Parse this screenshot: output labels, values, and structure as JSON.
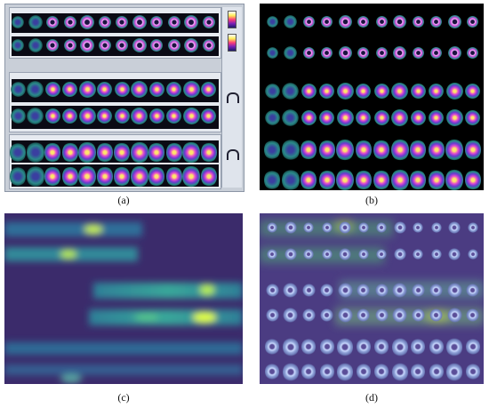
{
  "panels": [
    {
      "id": "a",
      "caption": "(a)"
    },
    {
      "id": "b",
      "caption": "(b)"
    },
    {
      "id": "c",
      "caption": "(c)"
    },
    {
      "id": "d",
      "caption": "(d)"
    }
  ],
  "colors": {
    "background": "#ffffff",
    "panel_a_frame": "#c9cfd8",
    "panel_b_bg": "#000000",
    "panel_c_bg": "#3a2a6a",
    "panel_c_glow": "#d8ff4a",
    "panel_d_bg": "#4b3c82"
  },
  "panel_a": {
    "row_titles": [
      "",
      "",
      "",
      "",
      "",
      ""
    ],
    "side_labels": [
      "",
      "",
      "",
      ""
    ]
  }
}
